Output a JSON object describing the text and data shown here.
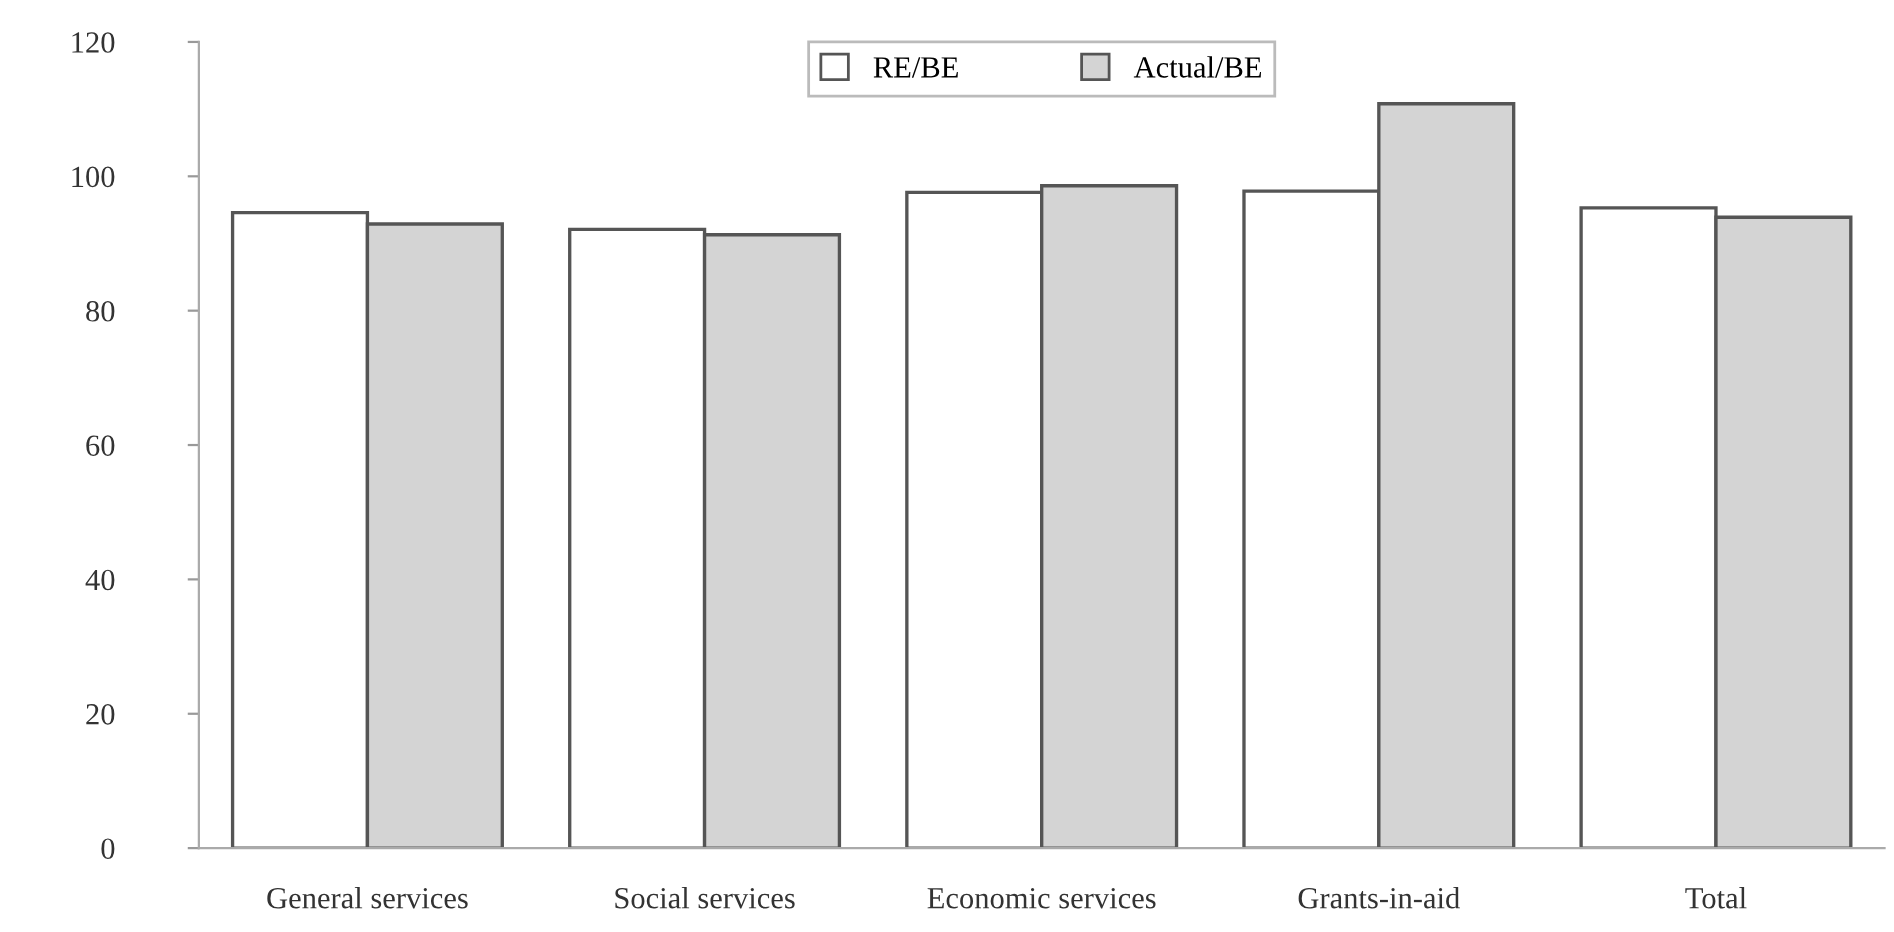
{
  "chart_data": {
    "type": "bar",
    "categories": [
      "General services",
      "Social services",
      "Economic services",
      "Grants-in-aid",
      "Total"
    ],
    "series": [
      {
        "name": "RE/BE",
        "color": "#ffffff",
        "values": [
          94.6,
          92.1,
          97.6,
          97.8,
          95.3
        ]
      },
      {
        "name": "Actual/BE",
        "color": "#d4d4d4",
        "values": [
          92.9,
          91.3,
          98.6,
          110.8,
          93.9
        ]
      }
    ],
    "ylim": [
      0,
      120
    ],
    "yticks": [
      0,
      20,
      40,
      60,
      80,
      100,
      120
    ],
    "legend": "top",
    "grid": false
  }
}
